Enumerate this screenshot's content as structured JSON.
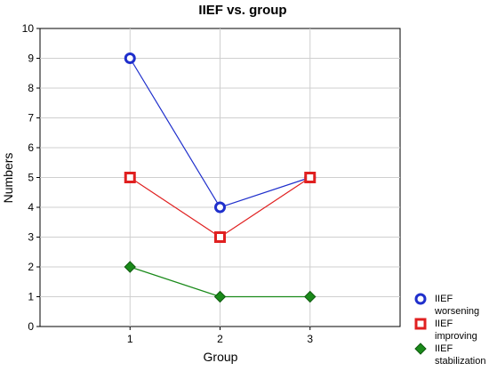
{
  "chart_data": {
    "type": "line",
    "title": "IIEF vs. group",
    "xlabel": "Group",
    "ylabel": "Numbers",
    "x": [
      1,
      2,
      3
    ],
    "xlim": [
      0,
      4
    ],
    "ylim": [
      0,
      10
    ],
    "x_ticks": [
      "1",
      "2",
      "3"
    ],
    "y_ticks": [
      "0",
      "1",
      "2",
      "3",
      "4",
      "5",
      "6",
      "7",
      "8",
      "9",
      "10"
    ],
    "grid": true,
    "legend_position": "bottom-right, outside plot",
    "series": [
      {
        "name": "IIEF worsening",
        "legend_lines": [
          "IIEF",
          "worsening"
        ],
        "values": [
          9,
          4,
          5
        ],
        "color": "#1f2fcc",
        "marker": "circle"
      },
      {
        "name": "IIEF improving",
        "legend_lines": [
          "IIEF",
          "improving"
        ],
        "values": [
          5,
          3,
          5
        ],
        "color": "#e02020",
        "marker": "square"
      },
      {
        "name": "IIEF stabilization",
        "legend_lines": [
          "IIEF",
          "stabilization"
        ],
        "values": [
          2,
          1,
          1
        ],
        "color": "#1a8a1a",
        "marker": "diamond"
      }
    ]
  }
}
